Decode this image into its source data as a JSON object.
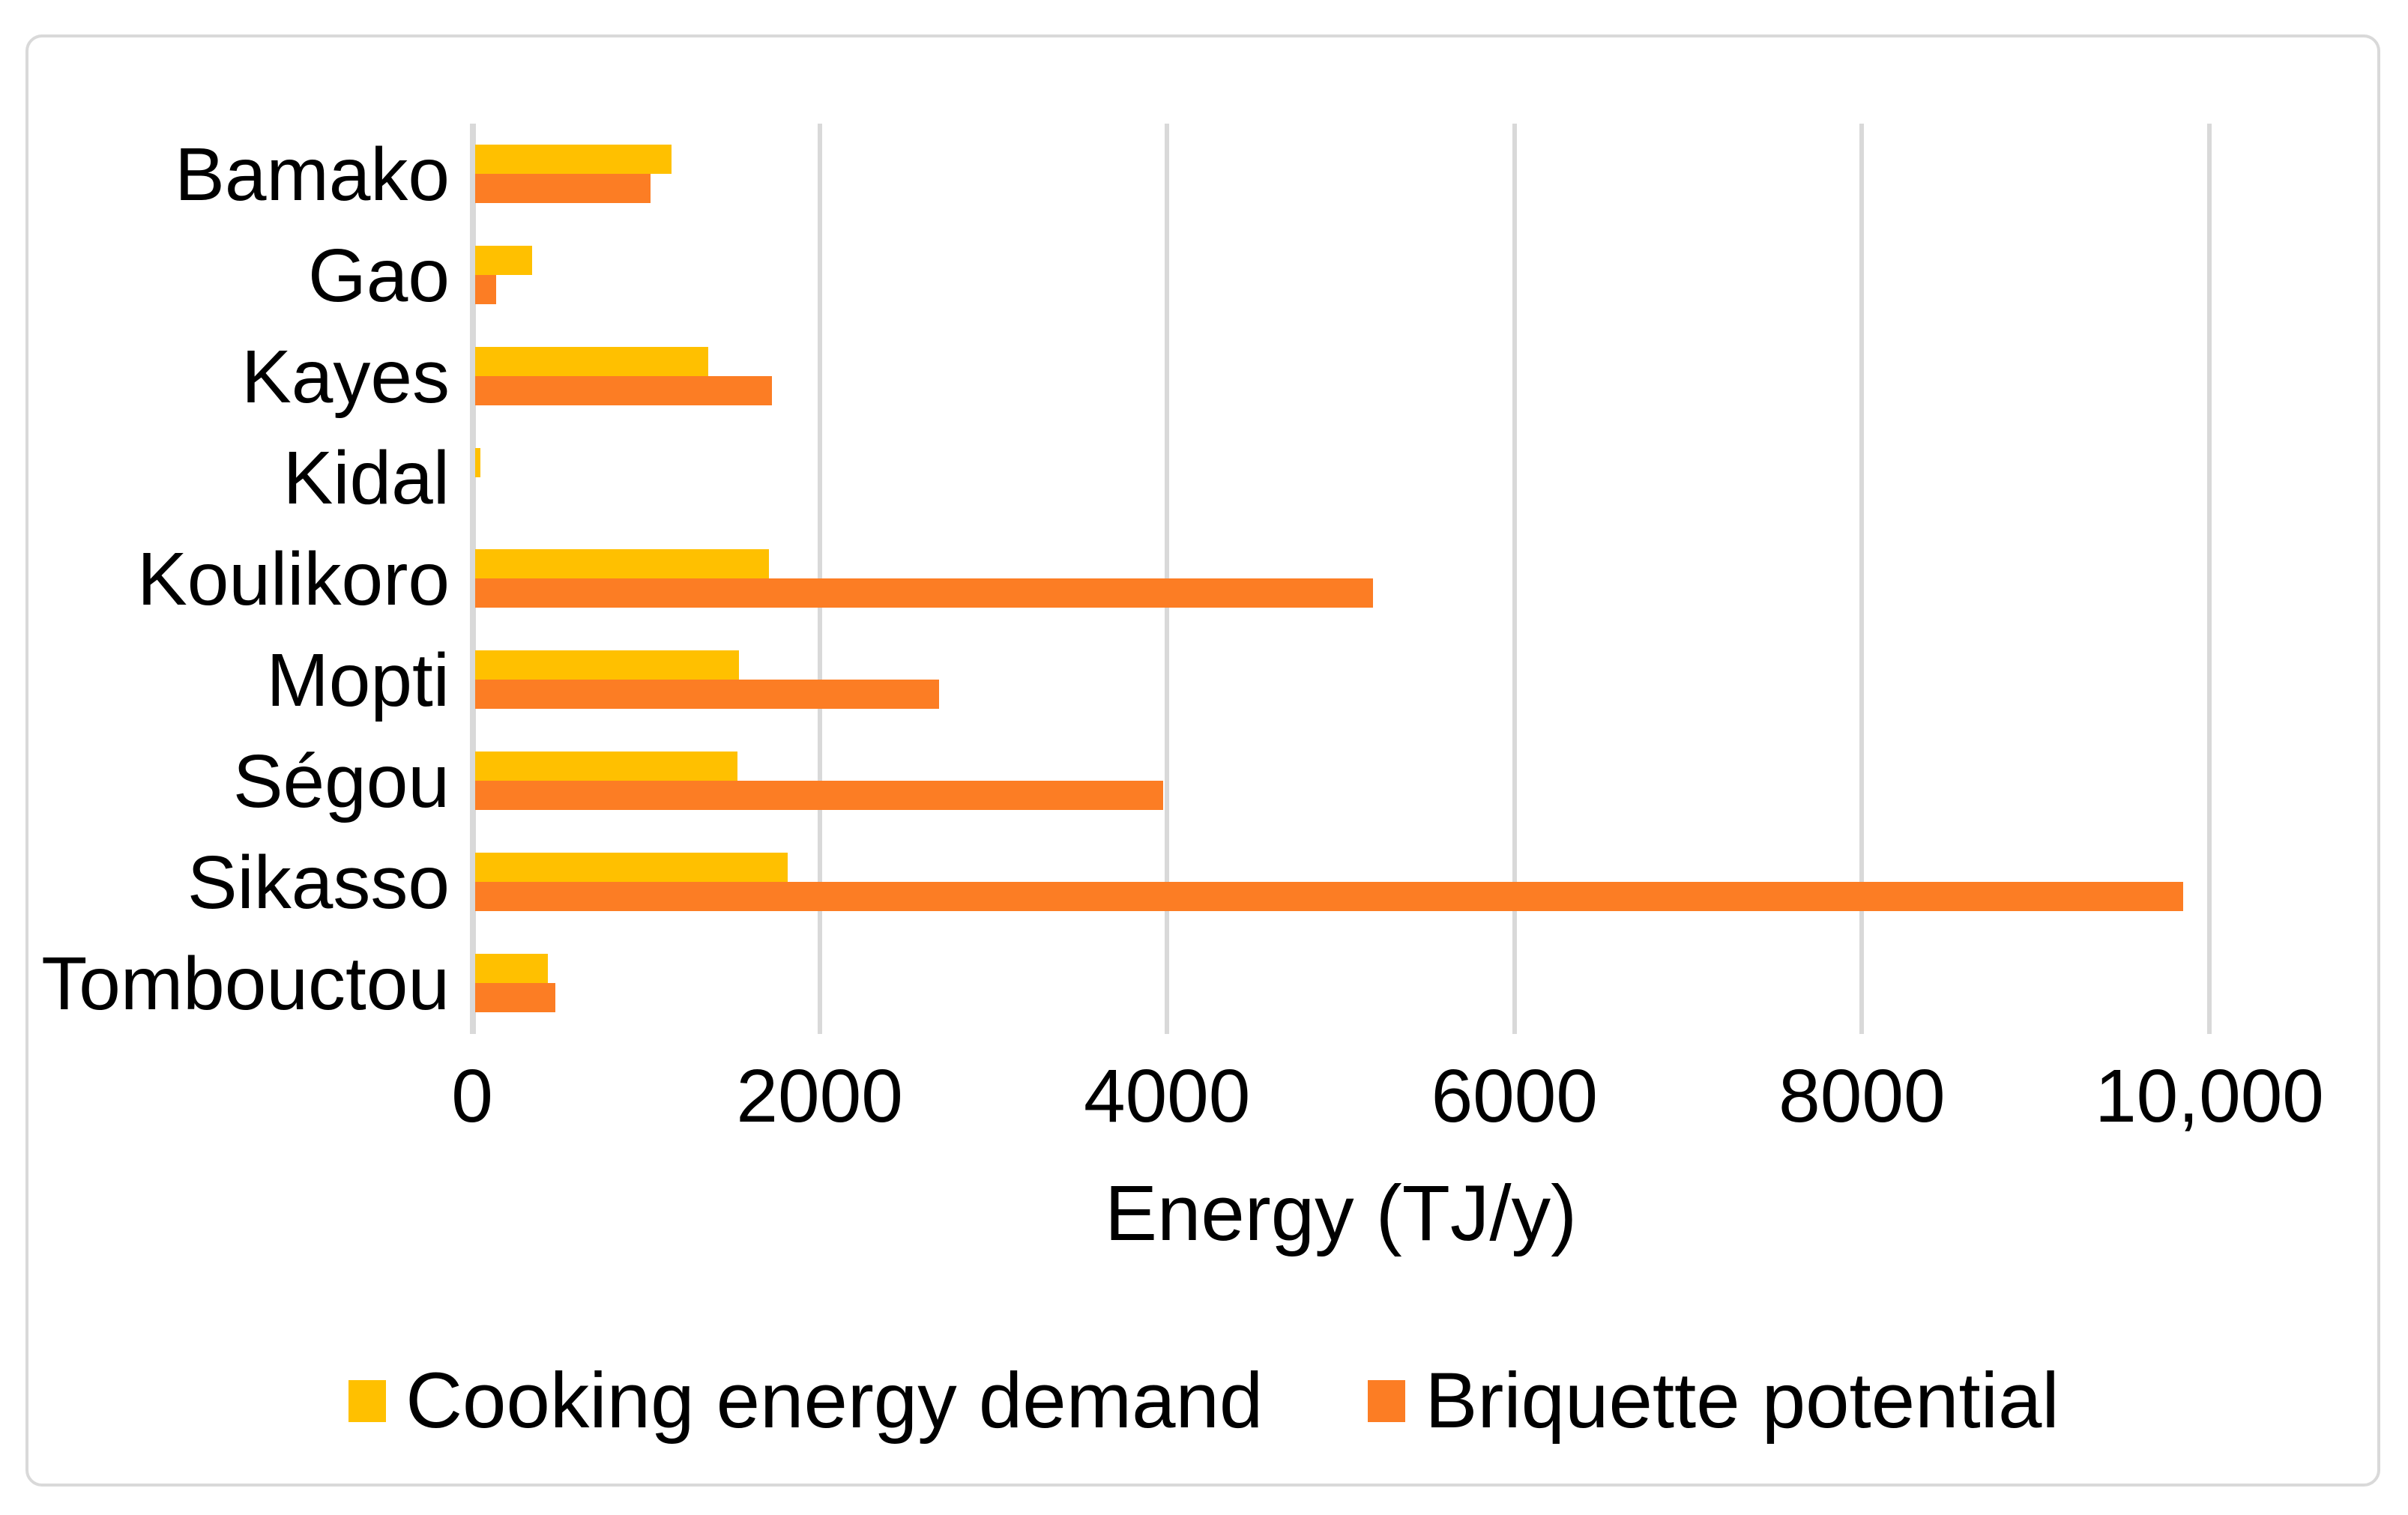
{
  "figure": {
    "background": "#ffffff",
    "border_color": "#d9d9d9"
  },
  "chart_data": {
    "type": "bar",
    "orientation": "horizontal",
    "title": "",
    "xlabel": "Energy (TJ/y)",
    "ylabel": "",
    "categories": [
      "Bamako",
      "Gao",
      "Kayes",
      "Kidal",
      "Koulikoro",
      "Mopti",
      "Ségou",
      "Sikasso",
      "Tombouctou"
    ],
    "series": [
      {
        "name": "Cooking energy demand",
        "color": "#FFC000",
        "values": [
          1130,
          330,
          1340,
          30,
          1690,
          1520,
          1510,
          1800,
          420
        ]
      },
      {
        "name": "Briquette potential",
        "color": "#FC7D24",
        "values": [
          1010,
          120,
          1710,
          0,
          5170,
          2670,
          3960,
          9830,
          460
        ]
      }
    ],
    "xlim": [
      0,
      10000
    ],
    "x_ticks": [
      0,
      2000,
      4000,
      6000,
      8000,
      10000
    ],
    "x_tick_labels": [
      "0",
      "2000",
      "4000",
      "6000",
      "8000",
      "10,000"
    ],
    "grid": "vertical",
    "gridline_color": "#d9d9d9",
    "legend_position": "bottom",
    "text_color": "#000000"
  }
}
